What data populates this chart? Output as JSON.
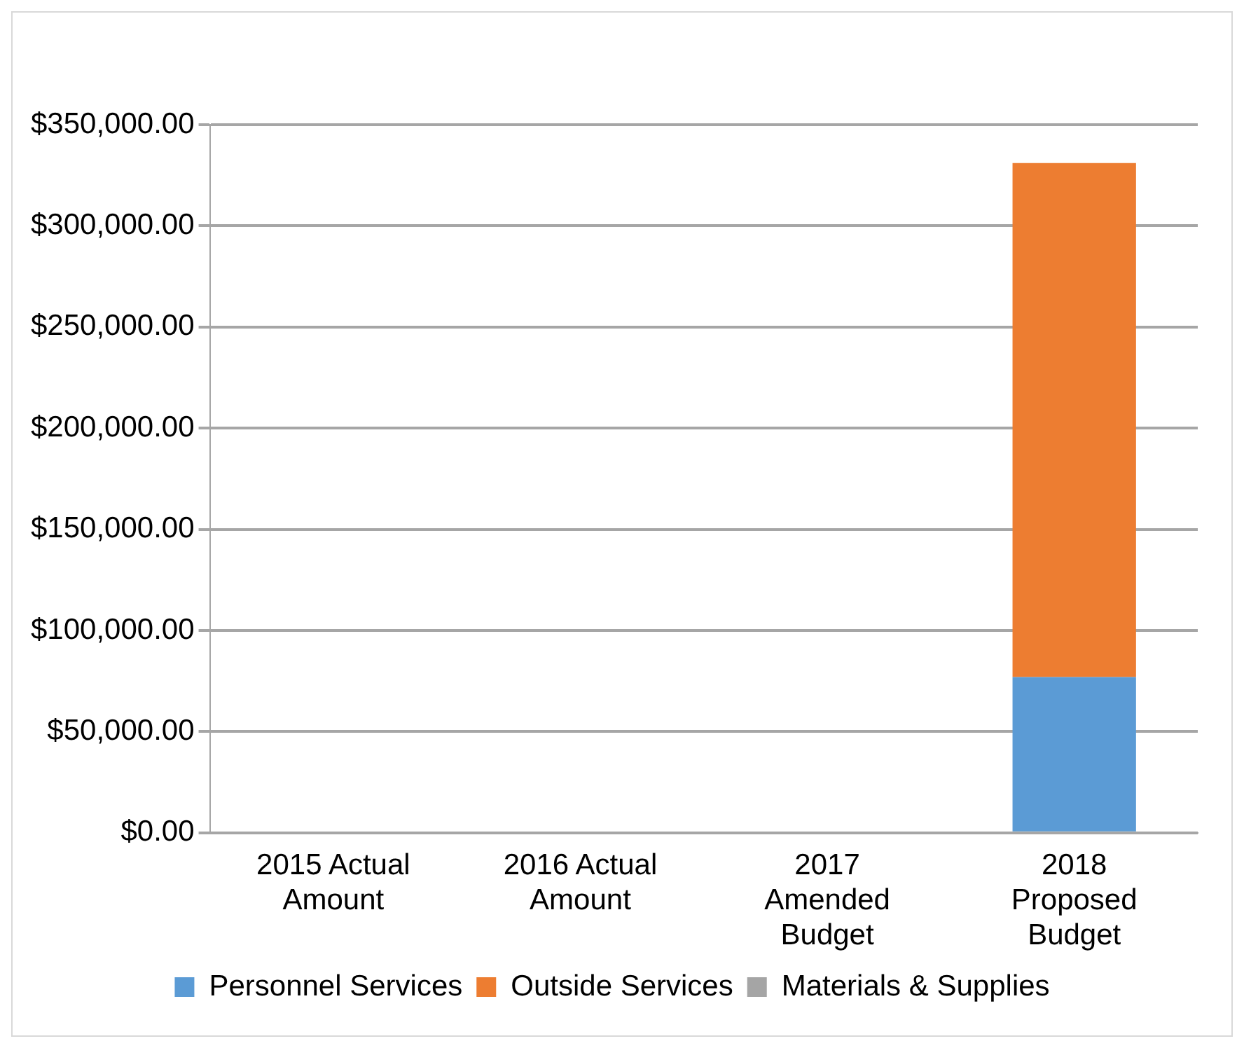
{
  "chart_data": {
    "type": "bar",
    "stacked": true,
    "categories": [
      "2015 Actual Amount",
      "2016 Actual Amount",
      "2017 Amended Budget",
      "2018 Proposed Budget"
    ],
    "series": [
      {
        "name": "Personnel Services",
        "color": "#5b9bd5",
        "values": [
          0,
          0,
          0,
          77000
        ]
      },
      {
        "name": "Outside Services",
        "color": "#ed7d31",
        "values": [
          0,
          0,
          0,
          254000
        ]
      },
      {
        "name": "Materials & Supplies",
        "color": "#a5a5a5",
        "values": [
          0,
          0,
          0,
          0
        ]
      }
    ],
    "ylim": [
      0,
      350000
    ],
    "yticks": [
      {
        "value": 0,
        "label": "$0.00"
      },
      {
        "value": 50000,
        "label": "$50,000.00"
      },
      {
        "value": 100000,
        "label": "$100,000.00"
      },
      {
        "value": 150000,
        "label": "$150,000.00"
      },
      {
        "value": 200000,
        "label": "$200,000.00"
      },
      {
        "value": 250000,
        "label": "$250,000.00"
      },
      {
        "value": 300000,
        "label": "$300,000.00"
      },
      {
        "value": 350000,
        "label": "$350,000.00"
      }
    ],
    "grid": "y",
    "legend": "bottom"
  }
}
